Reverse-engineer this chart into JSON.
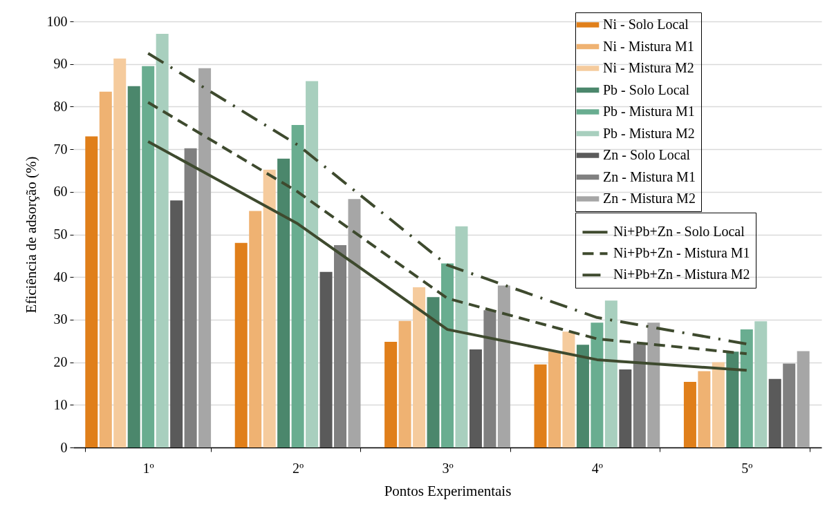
{
  "chart_data": {
    "type": "bar",
    "xlabel": "Pontos Experimentais",
    "ylabel": "Eficiência de adsorção (%)",
    "categories": [
      "1º",
      "2º",
      "3º",
      "4º",
      "5º"
    ],
    "ylim": [
      0,
      100
    ],
    "yticks": [
      0,
      10,
      20,
      30,
      40,
      50,
      60,
      70,
      80,
      90,
      100
    ],
    "grid": "y",
    "legend": "top right",
    "series": [
      {
        "name": "Ni - Solo Local",
        "color": "#e07f1a",
        "values": [
          73,
          48,
          24.8,
          19.5,
          15.4
        ]
      },
      {
        "name": "Ni - Mistura M1",
        "color": "#efb272",
        "values": [
          83.5,
          55.5,
          29.7,
          22.5,
          17.9
        ]
      },
      {
        "name": "Ni - Mistura M2",
        "color": "#f5cb9d",
        "values": [
          91.3,
          65.2,
          37.6,
          27.2,
          20
        ]
      },
      {
        "name": "Pb - Solo Local",
        "color": "#4b876c",
        "values": [
          84.8,
          67.8,
          35.3,
          24.1,
          22.5
        ]
      },
      {
        "name": "Pb - Mistura M1",
        "color": "#69ad90",
        "values": [
          89.5,
          75.7,
          43.2,
          29.3,
          27.7
        ]
      },
      {
        "name": "Pb - Mistura M2",
        "color": "#a8cfbe",
        "values": [
          97.1,
          86,
          51.9,
          34.5,
          29.6
        ]
      },
      {
        "name": "Zn - Solo Local",
        "color": "#5a5a5a",
        "values": [
          58,
          41.2,
          23,
          18.3,
          16.1
        ]
      },
      {
        "name": "Zn - Mistura M1",
        "color": "#808080",
        "values": [
          70.2,
          47.5,
          32.2,
          24.5,
          19.7
        ]
      },
      {
        "name": "Zn - Mistura M2",
        "color": "#a6a6a6",
        "values": [
          89,
          58.3,
          38,
          29.3,
          22.6
        ]
      },
      {
        "name": "Ni+Pb+Zn - Solo Local",
        "type": "line",
        "line_style": "solid",
        "color": "#3e4a2e",
        "values": [
          71.8,
          52.5,
          27.7,
          20.6,
          18.1
        ]
      },
      {
        "name": "Ni+Pb+Zn - Mistura M1",
        "type": "line",
        "line_style": "dashed",
        "color": "#3e4a2e",
        "values": [
          81,
          60,
          35,
          25.5,
          22
        ]
      },
      {
        "name": "Ni+Pb+Zn - Mistura M2",
        "type": "line",
        "line_style": "dashdot",
        "color": "#3e4a2e",
        "values": [
          92.5,
          71,
          42.8,
          30.5,
          24.3
        ]
      }
    ]
  }
}
